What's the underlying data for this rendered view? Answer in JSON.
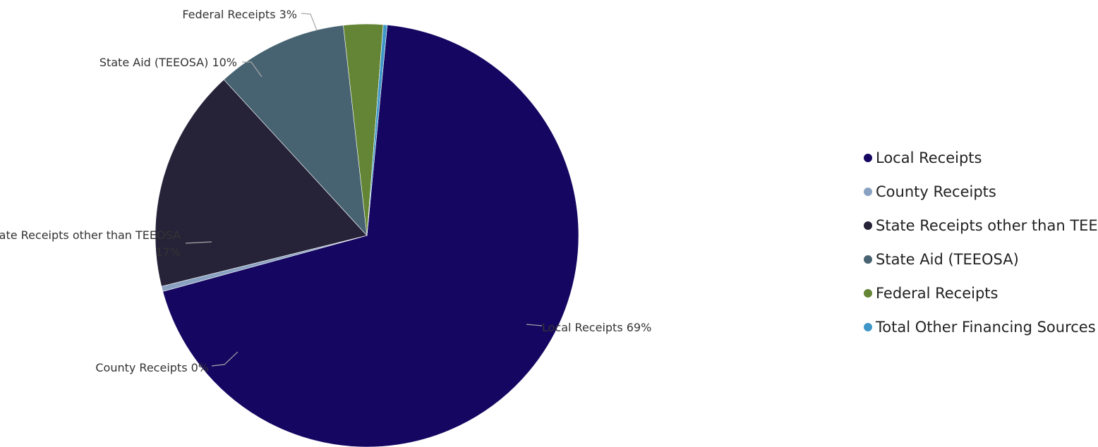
{
  "chart_data": {
    "type": "pie",
    "title": "",
    "slices": [
      {
        "name": "Local Receipts",
        "value": 69,
        "label": "Local Receipts 69%",
        "color": "#150661"
      },
      {
        "name": "County Receipts",
        "value": 0.4,
        "label": "County Receipts 0%",
        "color": "#8aa2c2"
      },
      {
        "name": "State Receipts other than TEEOSA",
        "value": 17,
        "label": [
          "State Receipts other than TEEOSA",
          "17%"
        ],
        "color": "#262339"
      },
      {
        "name": "State Aid (TEEOSA)",
        "value": 10,
        "label": "State Aid (TEEOSA) 10%",
        "color": "#476371"
      },
      {
        "name": "Federal Receipts",
        "value": 3,
        "label": "Federal Receipts 3%",
        "color": "#648535"
      },
      {
        "name": "Total Other Financing Sources",
        "value": 0.3,
        "label": "",
        "color": "#3f97c8"
      }
    ],
    "legend": {
      "placement": "right",
      "entries": [
        "Local Receipts",
        "County Receipts",
        "State Receipts other than TEEOSA",
        "State Aid (TEEOSA)",
        "Federal Receipts",
        "Total Other Financing Sources"
      ]
    }
  }
}
